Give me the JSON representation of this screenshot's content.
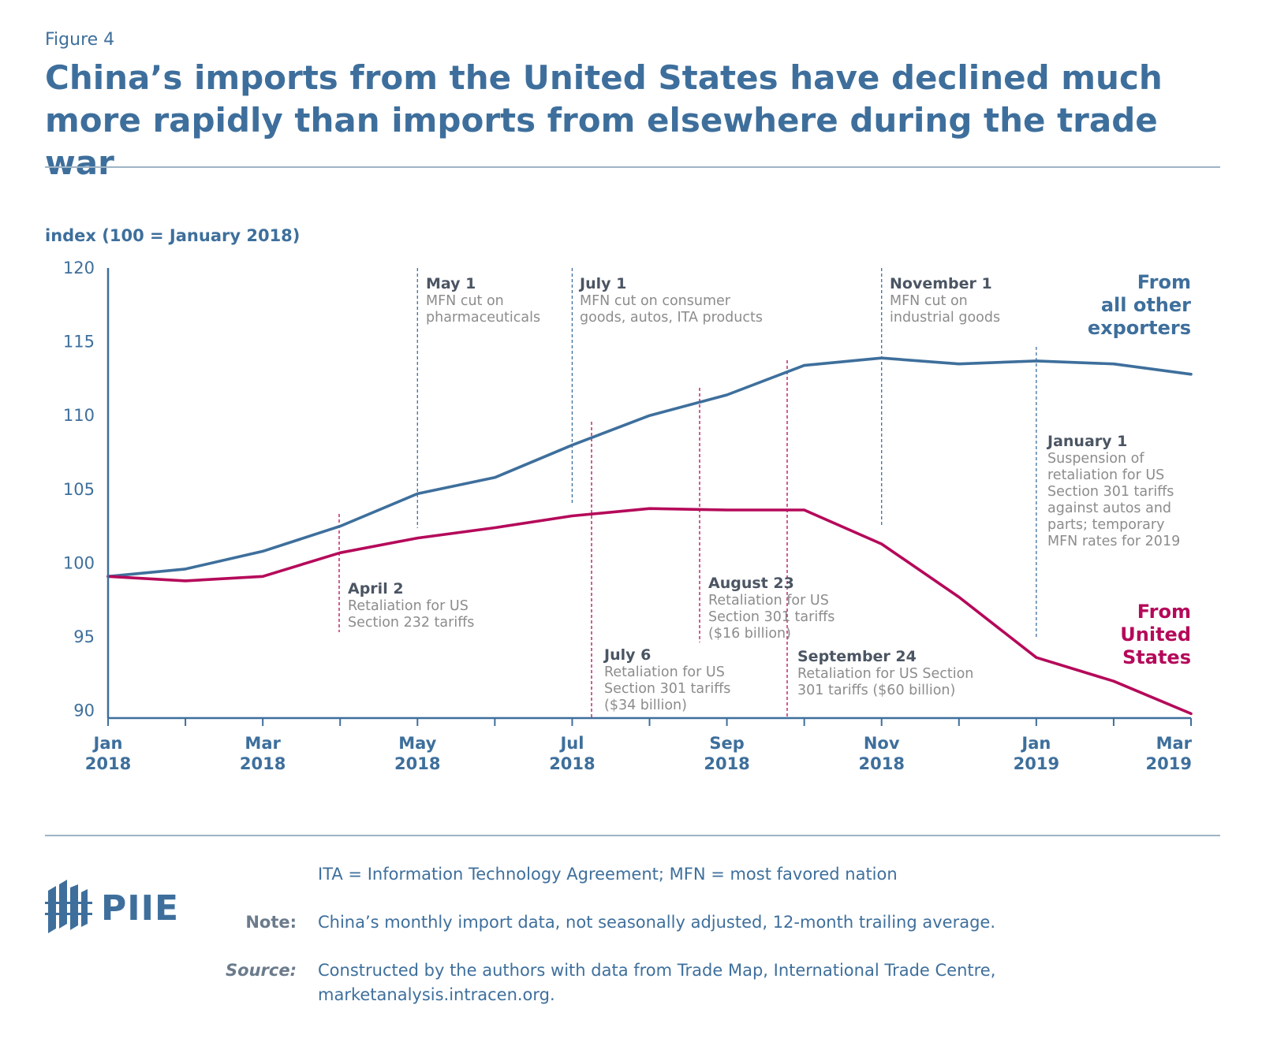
{
  "figure_label": "Figure 4",
  "title": "China’s imports from the United States have declined much more rapidly than imports from elsewhere during the trade war",
  "footer": {
    "abbrev": "ITA = Information Technology Agreement; MFN = most favored nation",
    "note_key": "Note:",
    "note": "China’s monthly import data, not seasonally adjusted, 12-month trailing average.",
    "source_key": "Source:",
    "source_line1": "Constructed by the authors with data from Trade Map, International Trade Centre,",
    "source_line2": "marketanalysis.intracen.org.",
    "logo_text": "PIIE"
  },
  "colors": {
    "other": "#3e6f9c",
    "us": "#b5095a",
    "text": "#3e6f9c",
    "annot_head": "#4b5563",
    "annot_body": "#8c8c8c"
  },
  "chart_data": {
    "type": "line",
    "ylabel": "index (100 = January 2018)",
    "ylim": [
      89.5,
      120
    ],
    "yticks": [
      90,
      95,
      100,
      105,
      110,
      115,
      120
    ],
    "x": [
      "2018-01",
      "2018-02",
      "2018-03",
      "2018-04",
      "2018-05",
      "2018-06",
      "2018-07",
      "2018-08",
      "2018-09",
      "2018-10",
      "2018-11",
      "2018-12",
      "2019-01",
      "2019-02",
      "2019-03"
    ],
    "xtick_labels": [
      {
        "index": 0,
        "month": "Jan",
        "year": "2018"
      },
      {
        "index": 2,
        "month": "Mar",
        "year": "2018"
      },
      {
        "index": 4,
        "month": "May",
        "year": "2018"
      },
      {
        "index": 6,
        "month": "Jul",
        "year": "2018"
      },
      {
        "index": 8,
        "month": "Sep",
        "year": "2018"
      },
      {
        "index": 10,
        "month": "Nov",
        "year": "2018"
      },
      {
        "index": 12,
        "month": "Jan",
        "year": "2019"
      },
      {
        "index": 14,
        "month": "Mar",
        "year": "2019"
      }
    ],
    "series": [
      {
        "name": "From all other exporters",
        "label_lines": [
          "From",
          "all other",
          "exporters"
        ],
        "color": "#3e6f9c",
        "values": [
          99.1,
          99.6,
          100.8,
          102.5,
          104.7,
          105.8,
          108.0,
          110.0,
          111.4,
          113.4,
          113.9,
          113.5,
          113.7,
          113.5,
          112.8
        ]
      },
      {
        "name": "From United States",
        "label_lines": [
          "From",
          "United",
          "States"
        ],
        "color": "#b5095a",
        "values": [
          99.1,
          98.8,
          99.1,
          100.7,
          101.7,
          102.4,
          103.2,
          103.7,
          103.6,
          103.6,
          101.3,
          97.7,
          93.6,
          92.0,
          89.8
        ]
      }
    ],
    "annotations": [
      {
        "group": "other",
        "x": 4.0,
        "date": "May 1",
        "lines": [
          "MFN cut on",
          "pharmaceuticals"
        ]
      },
      {
        "group": "other",
        "x": 6.0,
        "date": "July 1",
        "lines": [
          "MFN cut on consumer",
          "goods, autos, ITA products"
        ]
      },
      {
        "group": "other",
        "x": 10.0,
        "date": "November 1",
        "lines": [
          "MFN cut on",
          "industrial goods"
        ]
      },
      {
        "group": "other",
        "x": 12.0,
        "date": "January 1",
        "lines": [
          "Suspension of",
          "retaliation for US",
          "Section 301 tariffs",
          "against autos and",
          "parts; temporary",
          "MFN rates for 2019"
        ]
      },
      {
        "group": "us",
        "x": 3.03,
        "date": "April 2",
        "lines": [
          "Retaliation for US",
          "Section 232 tariffs"
        ]
      },
      {
        "group": "us",
        "x": 6.19,
        "date": "July 6",
        "lines": [
          "Retaliation for US",
          "Section 301 tariffs",
          "($34 billion)"
        ]
      },
      {
        "group": "us",
        "x": 7.73,
        "date": "August 23",
        "lines": [
          "Retaliation for US",
          "Section 301 tariffs",
          "($16 billion)"
        ]
      },
      {
        "group": "us",
        "x": 8.8,
        "date": "September 24",
        "lines": [
          "Retaliation for US Section",
          "301 tariffs ($60 billion)"
        ]
      }
    ]
  }
}
